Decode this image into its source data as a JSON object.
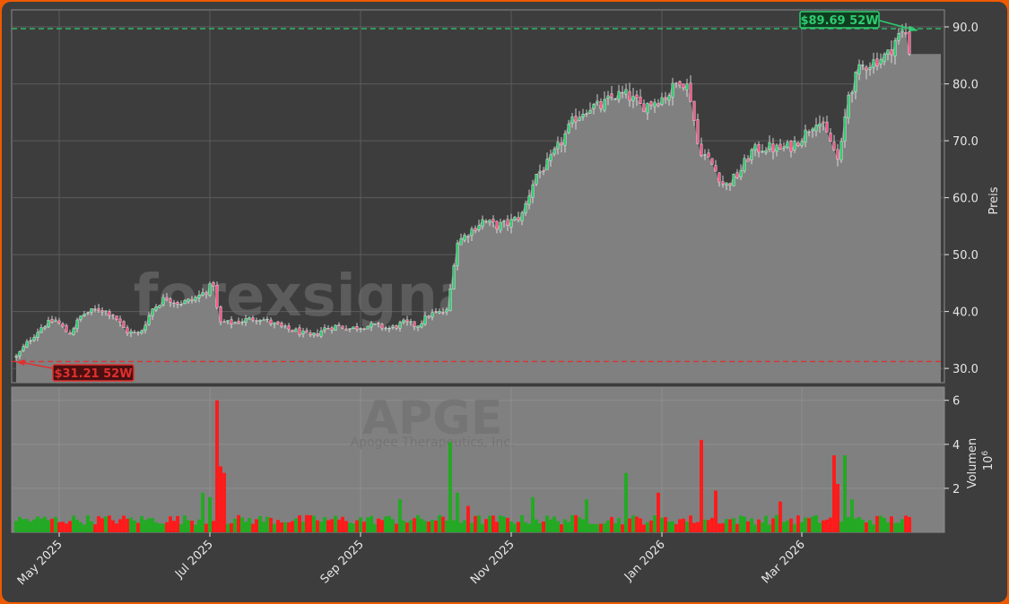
{
  "chart_data": {
    "type": "candlestick",
    "ticker": "APGE",
    "company": "Apogee Therapeutics, Inc.",
    "watermark": "forexsignale.trade",
    "price_axis_label": "Preis",
    "volume_axis_label": "Volumen",
    "volume_multiplier": "10",
    "volume_multiplier_exp": "6",
    "price_ylim": [
      27.5,
      93.0
    ],
    "price_ticks": [
      "30.0",
      "40.0",
      "50.0",
      "60.0",
      "70.0",
      "80.0",
      "90.0"
    ],
    "volume_ylim": [
      0,
      6.6
    ],
    "volume_ticks": [
      "2",
      "4",
      "6"
    ],
    "x_ticks": [
      "May 2025",
      "Jul 2025",
      "Sep 2025",
      "Nov 2025",
      "Jan 2026",
      "Mar 2026"
    ],
    "high_52w": {
      "value": 89.69,
      "label": "$89.69 52W"
    },
    "low_52w": {
      "value": 31.21,
      "label": "$31.21 52W"
    },
    "colors": {
      "up": "#22aa22",
      "down": "#ff1a1a",
      "high_line": "#2ecc71",
      "low_line": "#e03030",
      "area": "#808080"
    },
    "close_keypoints": [
      [
        0,
        32
      ],
      [
        6,
        35
      ],
      [
        12,
        37.5
      ],
      [
        18,
        38.5
      ],
      [
        24,
        36
      ],
      [
        30,
        39.5
      ],
      [
        38,
        40.5
      ],
      [
        44,
        39.5
      ],
      [
        50,
        36.5
      ],
      [
        56,
        36
      ],
      [
        62,
        40.5
      ],
      [
        68,
        42.5
      ],
      [
        74,
        41.5
      ],
      [
        80,
        42
      ],
      [
        86,
        43.5
      ],
      [
        90,
        45
      ],
      [
        92,
        38
      ],
      [
        98,
        38
      ],
      [
        104,
        38.5
      ],
      [
        110,
        39
      ],
      [
        116,
        38
      ],
      [
        122,
        37
      ],
      [
        128,
        36.5
      ],
      [
        134,
        35.5
      ],
      [
        140,
        37
      ],
      [
        146,
        37.5
      ],
      [
        152,
        37
      ],
      [
        158,
        37.5
      ],
      [
        164,
        37.5
      ],
      [
        170,
        37
      ],
      [
        176,
        38
      ],
      [
        182,
        37.5
      ],
      [
        188,
        39.5
      ],
      [
        196,
        40
      ],
      [
        200,
        52
      ],
      [
        206,
        54
      ],
      [
        212,
        56
      ],
      [
        218,
        55
      ],
      [
        224,
        55.5
      ],
      [
        230,
        57
      ],
      [
        236,
        64
      ],
      [
        242,
        66
      ],
      [
        248,
        70
      ],
      [
        254,
        74
      ],
      [
        260,
        76
      ],
      [
        266,
        76
      ],
      [
        272,
        78
      ],
      [
        278,
        78
      ],
      [
        284,
        76
      ],
      [
        290,
        77
      ],
      [
        296,
        78
      ],
      [
        302,
        81
      ],
      [
        306,
        79
      ],
      [
        310,
        69
      ],
      [
        316,
        66
      ],
      [
        322,
        62
      ],
      [
        328,
        64
      ],
      [
        334,
        68
      ],
      [
        340,
        69
      ],
      [
        346,
        68.5
      ],
      [
        352,
        69
      ],
      [
        358,
        71
      ],
      [
        364,
        74
      ],
      [
        370,
        70
      ],
      [
        374,
        66
      ],
      [
        378,
        78
      ],
      [
        384,
        83
      ],
      [
        390,
        84
      ],
      [
        396,
        85
      ],
      [
        400,
        88
      ],
      [
        404,
        89.5
      ],
      [
        406,
        86
      ]
    ],
    "volume_spikes": [
      [
        85,
        1.8
      ],
      [
        88,
        1.6
      ],
      [
        92,
        6.0
      ],
      [
        93,
        3.0
      ],
      [
        95,
        2.7
      ],
      [
        174,
        1.5
      ],
      [
        198,
        4.1
      ],
      [
        200,
        1.8
      ],
      [
        206,
        1.2
      ],
      [
        235,
        1.6
      ],
      [
        260,
        1.5
      ],
      [
        277,
        2.7
      ],
      [
        292,
        1.8
      ],
      [
        311,
        4.2
      ],
      [
        318,
        1.9
      ],
      [
        348,
        1.4
      ],
      [
        371,
        2.8
      ],
      [
        372,
        3.5
      ],
      [
        374,
        2.2
      ],
      [
        376,
        3.5
      ],
      [
        380,
        1.5
      ]
    ]
  }
}
